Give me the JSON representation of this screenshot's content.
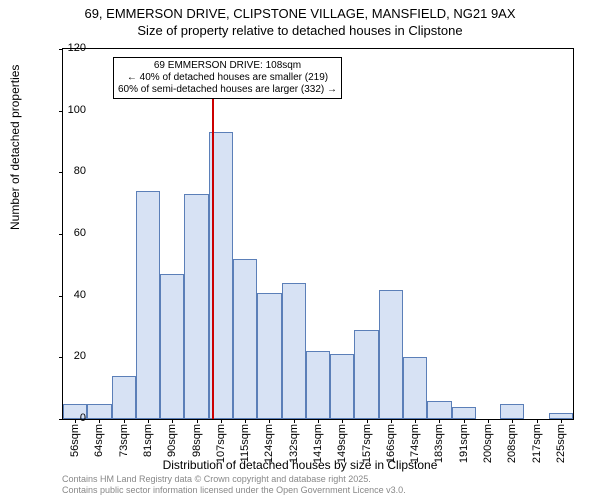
{
  "title_line1": "69, EMMERSON DRIVE, CLIPSTONE VILLAGE, MANSFIELD, NG21 9AX",
  "title_line2": "Size of property relative to detached houses in Clipstone",
  "y_axis_label": "Number of detached properties",
  "x_axis_label": "Distribution of detached houses by size in Clipstone",
  "attribution_line1": "Contains HM Land Registry data © Crown copyright and database right 2025.",
  "attribution_line2": "Contains public sector information licensed under the Open Government Licence v3.0.",
  "chart": {
    "type": "histogram",
    "ylim": [
      0,
      120
    ],
    "ytick_step": 20,
    "y_ticks": [
      0,
      20,
      40,
      60,
      80,
      100,
      120
    ],
    "x_categories": [
      "56sqm",
      "64sqm",
      "73sqm",
      "81sqm",
      "90sqm",
      "98sqm",
      "107sqm",
      "115sqm",
      "124sqm",
      "132sqm",
      "141sqm",
      "149sqm",
      "157sqm",
      "166sqm",
      "174sqm",
      "183sqm",
      "191sqm",
      "200sqm",
      "208sqm",
      "217sqm",
      "225sqm"
    ],
    "values": [
      5,
      5,
      14,
      74,
      47,
      73,
      93,
      52,
      41,
      44,
      22,
      21,
      29,
      42,
      20,
      6,
      4,
      0,
      5,
      0,
      2
    ],
    "bar_fill": "#d7e2f4",
    "bar_border": "#5b7fb8",
    "border_color": "#000000",
    "background_color": "#ffffff",
    "marker_color": "#cc0000",
    "marker_position_index": 6.15,
    "annotation": {
      "line1": "69 EMMERSON DRIVE: 108sqm",
      "line2": "← 40% of detached houses are smaller (219)",
      "line3": "60% of semi-detached houses are larger (332) →"
    }
  }
}
